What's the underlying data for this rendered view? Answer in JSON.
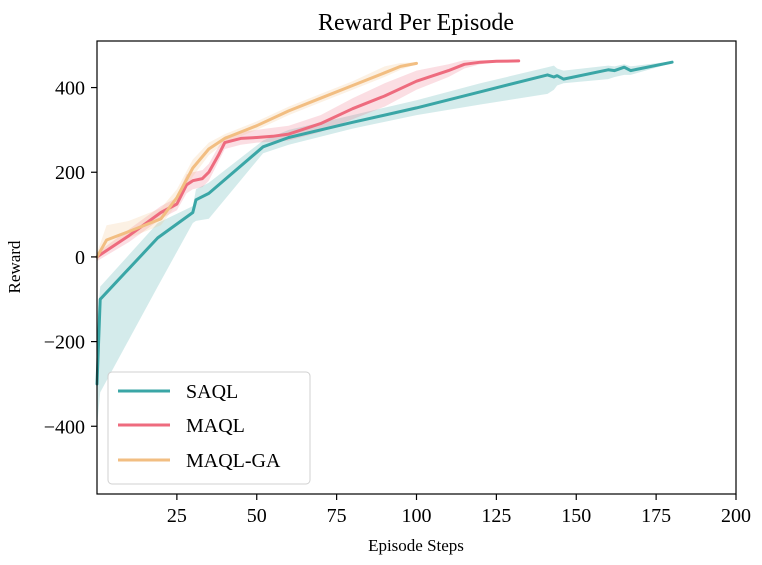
{
  "chart_data": {
    "type": "line",
    "title": "Reward Per Episode",
    "xlabel": "Episode Steps",
    "ylabel": "Reward",
    "xlim": [
      0,
      200
    ],
    "ylim": [
      -560,
      510
    ],
    "xticks": [
      25,
      50,
      75,
      100,
      125,
      150,
      175,
      200
    ],
    "yticks": [
      -400,
      -200,
      0,
      200,
      400
    ],
    "xtick_labels": [
      "25",
      "50",
      "75",
      "100",
      "125",
      "150",
      "175",
      "200"
    ],
    "ytick_labels": [
      "−400",
      "−200",
      "0",
      "200",
      "400"
    ],
    "grid": false,
    "legend_position": "lower-left",
    "legend": [
      "SAQL",
      "MAQL",
      "MAQL-GA"
    ],
    "series": [
      {
        "name": "SAQL",
        "color": "#3aa6a6",
        "x": [
          0,
          1,
          19,
          30,
          31,
          35,
          52,
          60,
          80,
          100,
          120,
          141,
          143,
          144,
          146,
          160,
          162,
          165,
          167,
          180
        ],
        "y": [
          -300,
          -100,
          45,
          105,
          135,
          150,
          260,
          282,
          318,
          352,
          390,
          430,
          425,
          428,
          420,
          442,
          440,
          448,
          440,
          460
        ],
        "lower": [
          -400,
          -320,
          -70,
          80,
          85,
          90,
          245,
          265,
          303,
          335,
          360,
          385,
          395,
          405,
          410,
          420,
          425,
          430,
          430,
          458
        ],
        "upper": [
          -150,
          -70,
          80,
          120,
          160,
          175,
          275,
          300,
          335,
          370,
          410,
          448,
          452,
          445,
          440,
          452,
          450,
          455,
          450,
          462
        ]
      },
      {
        "name": "MAQL",
        "color": "#ee6b7e",
        "x": [
          0,
          10,
          20,
          25,
          28,
          30,
          33,
          35,
          38,
          40,
          45,
          50,
          55,
          60,
          70,
          80,
          90,
          100,
          110,
          115,
          120,
          125,
          132
        ],
        "y": [
          0,
          50,
          105,
          125,
          170,
          180,
          185,
          200,
          240,
          270,
          280,
          282,
          285,
          290,
          315,
          350,
          380,
          415,
          440,
          455,
          460,
          462,
          463
        ],
        "lower": [
          -10,
          35,
          90,
          110,
          150,
          160,
          165,
          180,
          225,
          255,
          265,
          270,
          272,
          275,
          295,
          325,
          355,
          395,
          425,
          445,
          455,
          460,
          462
        ],
        "upper": [
          10,
          65,
          120,
          140,
          195,
          200,
          205,
          220,
          260,
          285,
          295,
          300,
          305,
          310,
          335,
          375,
          410,
          440,
          455,
          465,
          465,
          465,
          464
        ]
      },
      {
        "name": "MAQL-GA",
        "color": "#f2be82",
        "x": [
          0,
          3,
          10,
          20,
          25,
          30,
          35,
          40,
          50,
          60,
          70,
          80,
          90,
          95,
          100
        ],
        "y": [
          0,
          40,
          60,
          90,
          140,
          210,
          255,
          280,
          310,
          345,
          375,
          405,
          435,
          450,
          457
        ],
        "lower": [
          -10,
          20,
          45,
          75,
          125,
          190,
          240,
          270,
          300,
          335,
          365,
          395,
          425,
          442,
          455
        ],
        "upper": [
          10,
          75,
          85,
          115,
          160,
          230,
          270,
          290,
          320,
          355,
          385,
          415,
          450,
          458,
          460
        ]
      }
    ]
  }
}
